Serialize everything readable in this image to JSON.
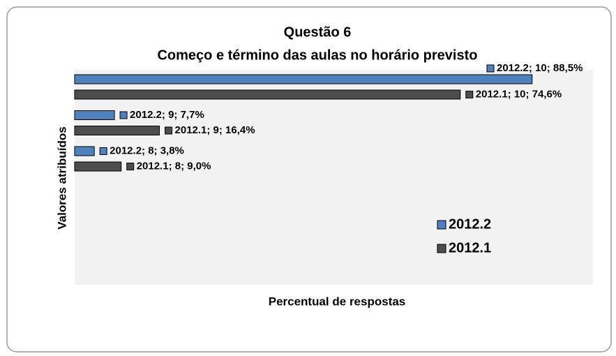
{
  "chart_data": {
    "type": "barh",
    "title": "Questão  6",
    "subtitle": "Começo e término das aulas no horário previsto",
    "x_label": "Percentual de respostas",
    "y_label": "Valores atribuídos",
    "xlim": [
      0,
      100
    ],
    "legend": "lower right",
    "series": [
      {
        "name": "2012.2",
        "color": "#4f81bd",
        "values": [
          88.5,
          7.7,
          3.8
        ],
        "value_labels": [
          "2012.2; 10; 88,5%",
          "2012.2; 9; 7,7%",
          "2012.2; 8; 3,8%"
        ]
      },
      {
        "name": "2012.1",
        "color": "#4d4d4d",
        "values": [
          74.6,
          16.4,
          9.0
        ],
        "value_labels": [
          "2012.1; 10; 74,6%",
          "2012.1; 9; 16,4%",
          "2012.1; 8; 9,0%"
        ]
      }
    ]
  }
}
